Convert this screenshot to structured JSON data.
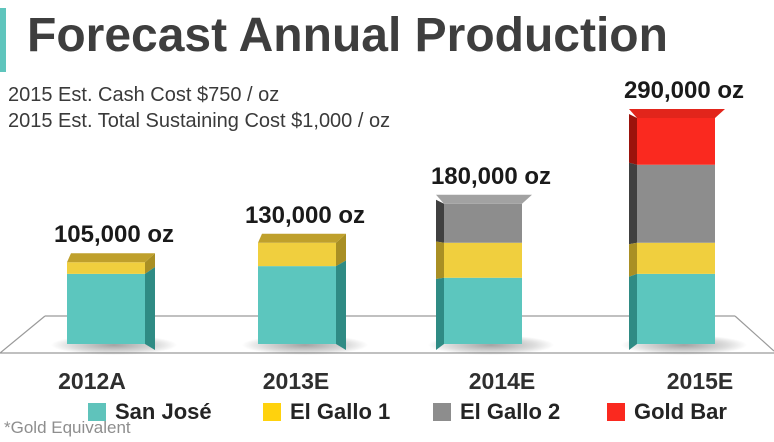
{
  "slide": {
    "title": "Forecast Annual Production",
    "subtitle_line1": "2015 Est. Cash Cost $750 / oz",
    "subtitle_line2": "2015 Est. Total Sustaining Cost $1,000 / oz",
    "footnote": "*Gold Equivalent",
    "accent_color": "#5FC5BD"
  },
  "chart_data": {
    "type": "bar",
    "stacked": true,
    "pseudo_3d": true,
    "unit": "oz",
    "categories": [
      "2012A",
      "2013E",
      "2014E",
      "2015E"
    ],
    "totals": [
      105000,
      130000,
      180000,
      290000
    ],
    "total_labels": [
      "105,000 oz",
      "130,000 oz",
      "180,000 oz",
      "290,000 oz"
    ],
    "series": [
      {
        "name": "San José",
        "color": "#5CC6BE",
        "side_color": "#2F8B84",
        "top_color": "#4FB8B0",
        "values": [
          90000,
          100000,
          85000,
          90000
        ]
      },
      {
        "name": "El Gallo 1",
        "color": "#F0CF3E",
        "side_color": "#A98F24",
        "top_color": "#BFA02C",
        "values": [
          15000,
          30000,
          45000,
          40000
        ]
      },
      {
        "name": "El Gallo 2",
        "color": "#8D8D8D",
        "side_color": "#404040",
        "top_color": "#A2A2A2",
        "values": [
          0,
          0,
          50000,
          100000
        ]
      },
      {
        "name": "Gold Bar",
        "color": "#FA291F",
        "side_color": "#9B130C",
        "top_color": "#E2251B",
        "values": [
          0,
          0,
          0,
          60000
        ]
      }
    ],
    "legend": [
      {
        "label": "San José",
        "color": "#5FC3BB"
      },
      {
        "label": "El Gallo 1",
        "color": "#FFD20D"
      },
      {
        "label": "El Gallo 2",
        "color": "#8D8D8D"
      },
      {
        "label": "Gold Bar",
        "color": "#FA291F"
      }
    ],
    "floor_line_color": "#9A9A9A",
    "value_label_suffix": "oz",
    "legend_position": "bottom",
    "grid": false
  }
}
